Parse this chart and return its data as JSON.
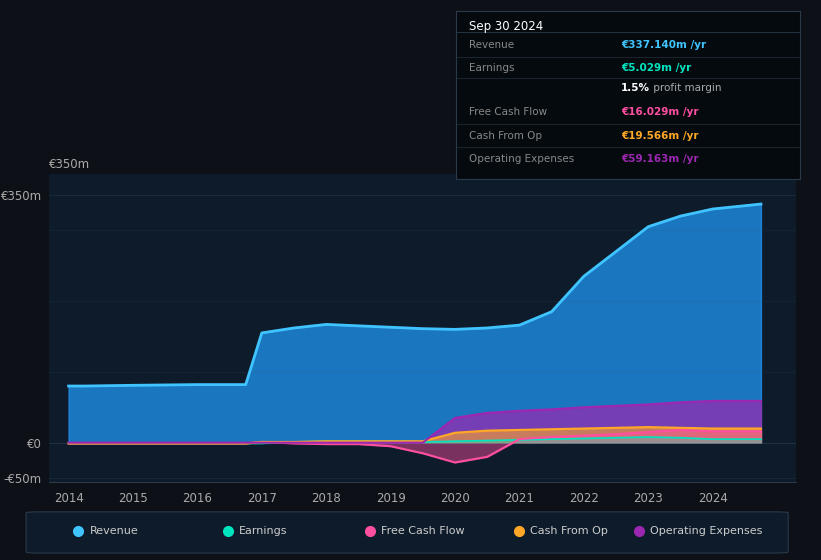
{
  "bg_color": "#0d1117",
  "plot_bg_color": "#0d1b2a",
  "years": [
    2014,
    2014.25,
    2015,
    2016,
    2016.75,
    2017,
    2017.5,
    2018,
    2018.5,
    2019,
    2019.5,
    2020,
    2020.5,
    2021,
    2021.5,
    2022,
    2022.5,
    2023,
    2023.5,
    2024,
    2024.75
  ],
  "revenue": [
    80,
    80,
    81,
    82,
    82,
    155,
    162,
    167,
    165,
    163,
    161,
    160,
    162,
    166,
    185,
    235,
    270,
    305,
    320,
    330,
    337
  ],
  "earnings": [
    -1,
    -1,
    -1,
    -1,
    -1,
    -1,
    1,
    2,
    2,
    2,
    1,
    2,
    3,
    4,
    5,
    6,
    7,
    8,
    7,
    5,
    5
  ],
  "fcf": [
    -1,
    -1,
    -1,
    -1,
    -1,
    1,
    -1,
    -2,
    -2,
    -5,
    -15,
    -28,
    -20,
    5,
    8,
    10,
    12,
    15,
    18,
    16,
    16
  ],
  "cash_from_op": [
    -1,
    -1,
    -1,
    -1,
    -1,
    1,
    1,
    2,
    2,
    2,
    2,
    14,
    17,
    18,
    19,
    20,
    21,
    22,
    21,
    20,
    20
  ],
  "op_expenses": [
    0,
    0,
    0,
    0,
    0,
    0,
    0,
    0,
    0,
    0,
    0,
    35,
    42,
    45,
    47,
    50,
    52,
    54,
    57,
    59,
    59
  ],
  "revenue_color": "#2196f3",
  "revenue_line_color": "#40c4ff",
  "earnings_color": "#00e5c0",
  "fcf_color": "#ff4fa0",
  "cash_from_op_color": "#ffa726",
  "op_expenses_color": "#9c27b0",
  "ylim_min": -55,
  "ylim_max": 380,
  "ytick_vals": [
    -50,
    0,
    350
  ],
  "ytick_labels": [
    "-€50m",
    "€0",
    "€350m"
  ],
  "xtick_vals": [
    2014,
    2015,
    2016,
    2017,
    2018,
    2019,
    2020,
    2021,
    2022,
    2023,
    2024
  ],
  "legend_items": [
    "Revenue",
    "Earnings",
    "Free Cash Flow",
    "Cash From Op",
    "Operating Expenses"
  ],
  "legend_colors": [
    "#40c4ff",
    "#00e5c0",
    "#ff4fa0",
    "#ffa726",
    "#9c27b0"
  ],
  "info_box": {
    "title": "Sep 30 2024",
    "rows": [
      {
        "label": "Revenue",
        "value": "€337.140m /yr",
        "color": "#40c4ff"
      },
      {
        "label": "Earnings",
        "value": "€5.029m /yr",
        "color": "#00e5c0"
      },
      {
        "label": "",
        "value": "1.5% profit margin",
        "color": "#ffffff"
      },
      {
        "label": "Free Cash Flow",
        "value": "€16.029m /yr",
        "color": "#ff4fa0"
      },
      {
        "label": "Cash From Op",
        "value": "€19.566m /yr",
        "color": "#ffa726"
      },
      {
        "label": "Operating Expenses",
        "value": "€59.163m /yr",
        "color": "#9c27b0"
      }
    ]
  },
  "grid_color": "#1e2d3d",
  "grid_alpha": 0.8
}
